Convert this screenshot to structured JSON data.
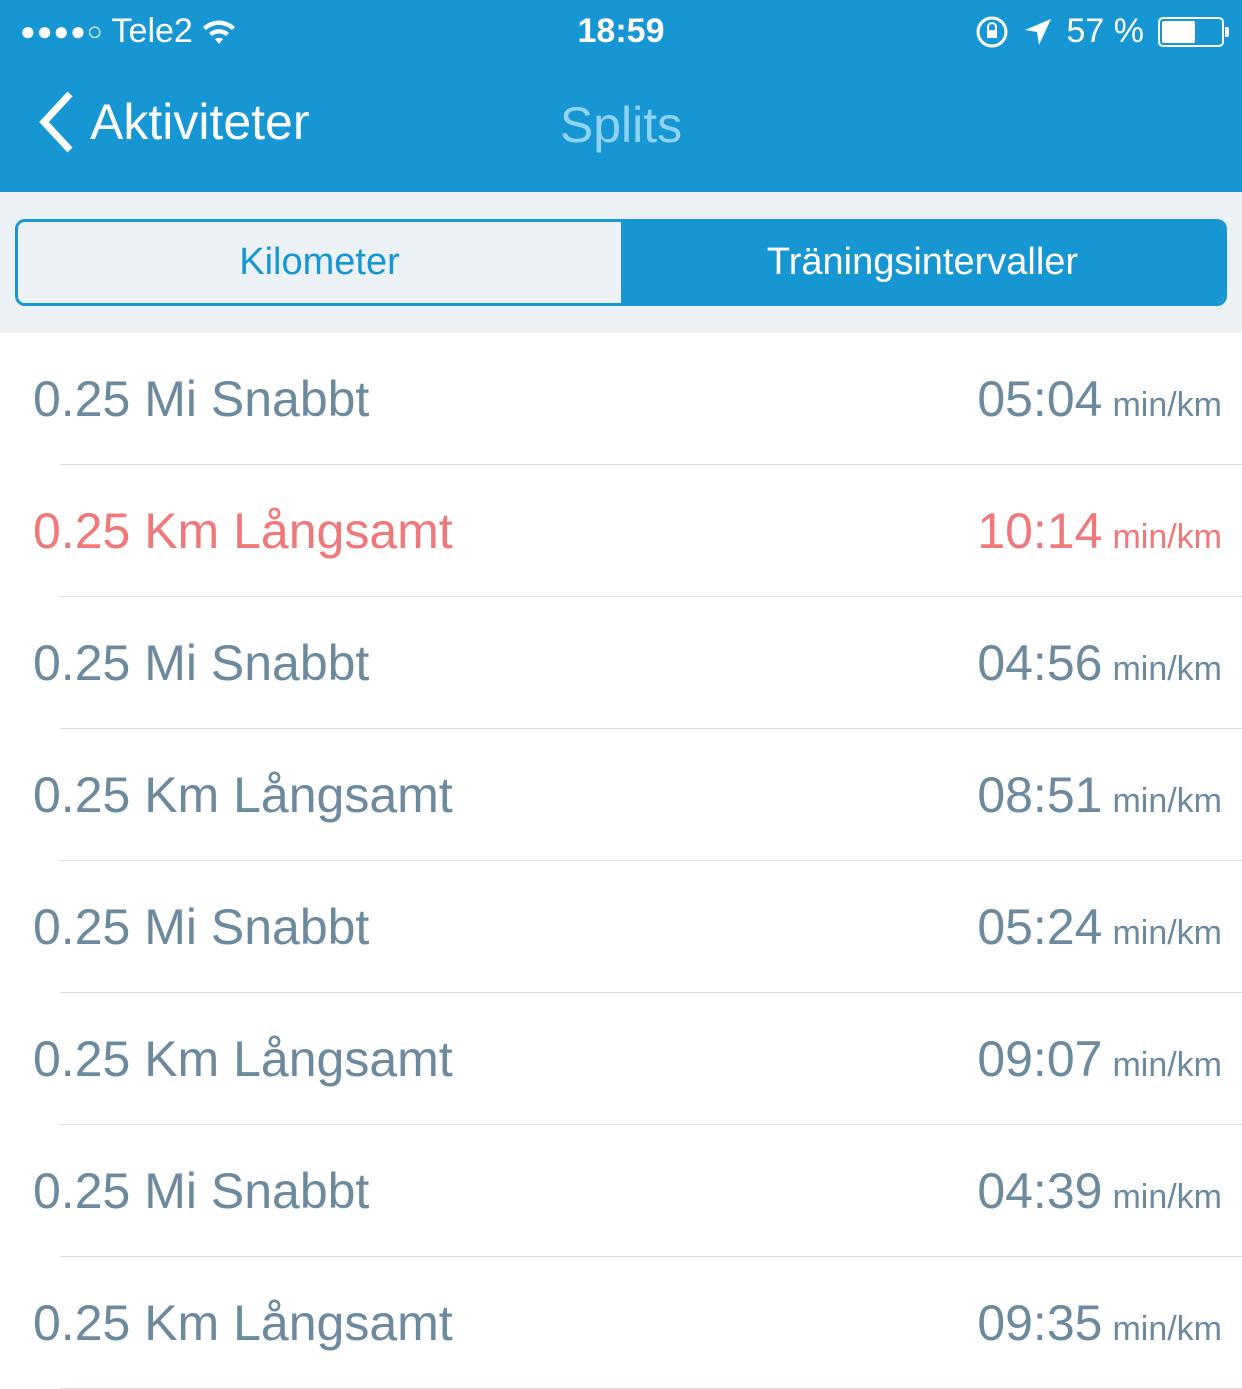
{
  "status": {
    "signal_dots": "●●●●○",
    "carrier": "Tele2",
    "time": "18:59",
    "battery": "57 %",
    "battery_level": 0.57
  },
  "nav": {
    "back_label": "Aktiviteter",
    "title": "Splits"
  },
  "segments": [
    {
      "label": "Kilometer",
      "selected": false
    },
    {
      "label": "Träningsintervaller",
      "selected": true
    }
  ],
  "colors": {
    "accent": "#1796d4",
    "text": "#6b8aa0",
    "highlight": "#f07878"
  },
  "rows": [
    {
      "label": "0.25 Mi Snabbt",
      "pace": "05:04",
      "unit": "min/km"
    },
    {
      "label": "0.25 Km Långsamt",
      "pace": "10:14",
      "unit": "min/km",
      "highlight": true
    },
    {
      "label": "0.25 Mi Snabbt",
      "pace": "04:56",
      "unit": "min/km"
    },
    {
      "label": "0.25 Km Långsamt",
      "pace": "08:51",
      "unit": "min/km"
    },
    {
      "label": "0.25 Mi Snabbt",
      "pace": "05:24",
      "unit": "min/km"
    },
    {
      "label": "0.25 Km Långsamt",
      "pace": "09:07",
      "unit": "min/km"
    },
    {
      "label": "0.25 Mi Snabbt",
      "pace": "04:39",
      "unit": "min/km"
    },
    {
      "label": "0.25 Km Långsamt",
      "pace": "09:35",
      "unit": "min/km"
    }
  ]
}
